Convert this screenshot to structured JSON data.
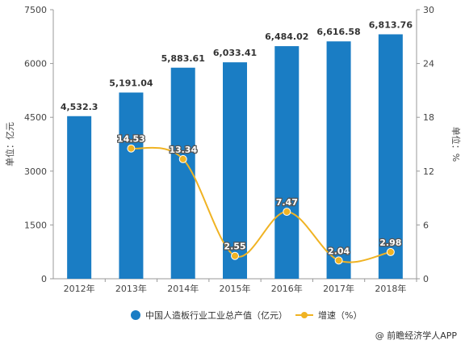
{
  "chart_data": {
    "type": "bar",
    "categories": [
      "2012年",
      "2013年",
      "2014年",
      "2015年",
      "2016年",
      "2017年",
      "2018年"
    ],
    "series": [
      {
        "name": "中国人造板行业工业总产值（亿元）",
        "type": "bar",
        "axis": "left",
        "values": [
          4532.3,
          5191.04,
          5883.61,
          6033.41,
          6484.02,
          6616.58,
          6813.76
        ],
        "labels": [
          "4,532.3",
          "5,191.04",
          "5,883.61",
          "6,033.41",
          "6,484.02",
          "6,616.58",
          "6,813.76"
        ],
        "color": "#1a7dc4"
      },
      {
        "name": "增速（%）",
        "type": "line",
        "axis": "right",
        "values": [
          null,
          14.53,
          13.34,
          2.55,
          7.47,
          2.04,
          2.98
        ],
        "labels": [
          "",
          "14.53",
          "13.34",
          "2.55",
          "7.47",
          "2.04",
          "2.98"
        ],
        "color": "#f0b323"
      }
    ],
    "ylabel": "单位：亿元",
    "y2label": "单位：%",
    "ylim": [
      0,
      7500
    ],
    "y2lim": [
      0,
      30
    ],
    "yticks": [
      "0",
      "1500",
      "3000",
      "4500",
      "6000",
      "7500"
    ],
    "y2ticks": [
      "0",
      "6",
      "12",
      "18",
      "24",
      "30"
    ],
    "grid": false,
    "legend_position": "bottom"
  },
  "credit": "@ 前瞻经济学人APP",
  "colors": {
    "axis": "#999999",
    "text": "#444444"
  }
}
